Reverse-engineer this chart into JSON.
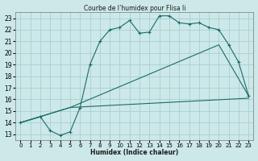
{
  "title": "Courbe de l’humidex pour Flisa Ii",
  "xlabel": "Humidex (Indice chaleur)",
  "bg_color": "#cce8e8",
  "grid_color": "#aacfcf",
  "line_color": "#1a6b6b",
  "xlim": [
    -0.5,
    23.5
  ],
  "ylim": [
    12.5,
    23.5
  ],
  "xticks": [
    0,
    1,
    2,
    3,
    4,
    5,
    6,
    7,
    8,
    9,
    10,
    11,
    12,
    13,
    14,
    15,
    16,
    17,
    18,
    19,
    20,
    21,
    22,
    23
  ],
  "yticks": [
    13,
    14,
    15,
    16,
    17,
    18,
    19,
    20,
    21,
    22,
    23
  ],
  "series": [
    {
      "x": [
        0,
        2,
        3,
        4,
        5,
        6,
        7,
        8,
        9,
        10,
        11,
        12,
        13,
        14,
        15,
        16,
        17,
        18,
        19,
        20,
        21,
        22,
        23
      ],
      "y": [
        14.0,
        14.5,
        13.3,
        12.9,
        13.2,
        15.3,
        19.0,
        21.0,
        22.0,
        22.2,
        22.8,
        21.7,
        21.8,
        23.2,
        23.2,
        22.6,
        22.5,
        22.6,
        22.2,
        22.0,
        20.7,
        19.2,
        16.3
      ],
      "has_marker": true
    },
    {
      "x": [
        0,
        5,
        23
      ],
      "y": [
        14.0,
        15.3,
        16.1
      ],
      "has_marker": false
    },
    {
      "x": [
        0,
        5,
        20,
        23
      ],
      "y": [
        14.0,
        15.3,
        20.7,
        16.3
      ],
      "has_marker": false
    }
  ]
}
